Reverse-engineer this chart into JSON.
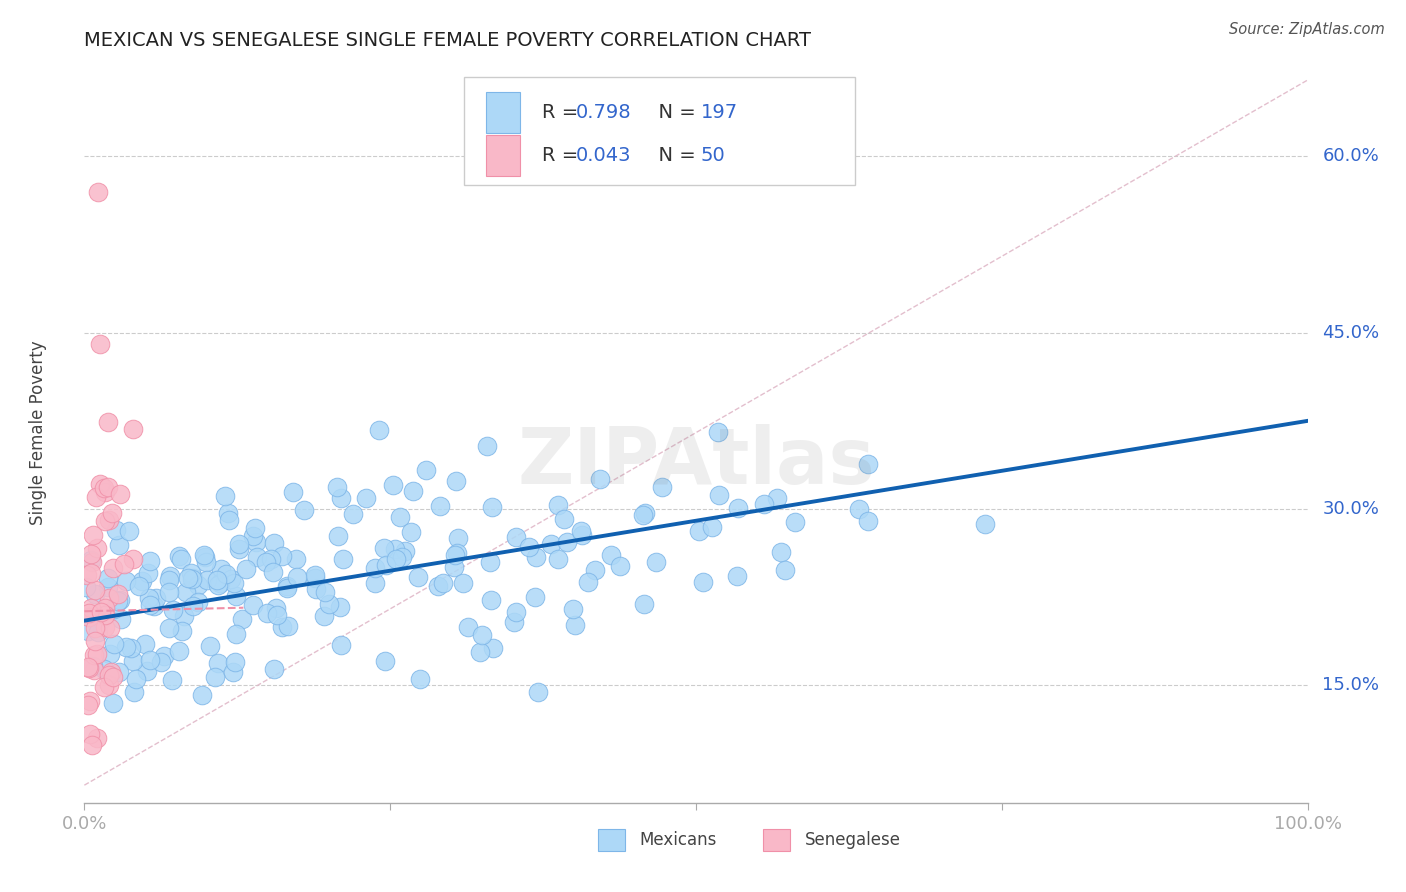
{
  "title": "MEXICAN VS SENEGALESE SINGLE FEMALE POVERTY CORRELATION CHART",
  "source": "Source: ZipAtlas.com",
  "ylabel": "Single Female Poverty",
  "xlim": [
    0.0,
    1.0
  ],
  "ylim": [
    0.05,
    0.68
  ],
  "yticks": [
    0.15,
    0.3,
    0.45,
    0.6
  ],
  "ytick_labels": [
    "15.0%",
    "30.0%",
    "45.0%",
    "60.0%"
  ],
  "blue_R": 0.798,
  "blue_N": 197,
  "pink_R": 0.043,
  "pink_N": 50,
  "blue_color": "#ADD8F7",
  "pink_color": "#F9B8C8",
  "blue_edge_color": "#7EB6E8",
  "pink_edge_color": "#F090A8",
  "blue_line_color": "#1060B0",
  "diag_line_color": "#E0B0C0",
  "legend_text_color": "#3366CC",
  "legend_N_color": "#CC3333",
  "figsize": [
    14.06,
    8.92
  ],
  "dpi": 100
}
